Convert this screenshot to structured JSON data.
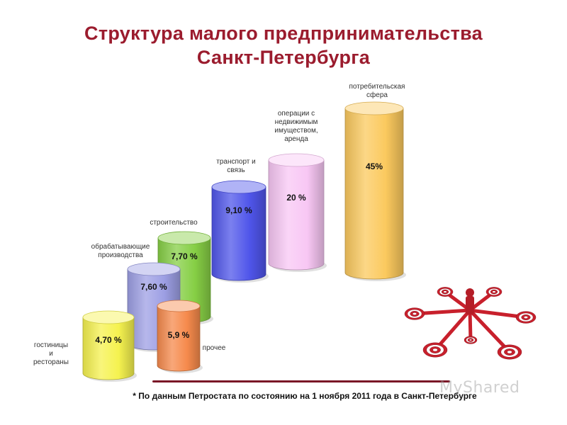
{
  "title": {
    "line1": "Структура малого предпринимательства",
    "line2": "Санкт-Петербурга"
  },
  "footnote": "* По данным Петростата по состоянию на 1 ноября 2011 года в Санкт-Петербурге",
  "watermark": "MyShared",
  "chart_data": {
    "type": "bar",
    "categories": [
      "гостиницы и рестораны",
      "обрабатывающие производства",
      "строительство",
      "транспорт и связь",
      "операции с недвижимым имуществом, аренда",
      "потребительская сфера",
      "прочее"
    ],
    "values": [
      4.7,
      7.6,
      7.7,
      9.1,
      20,
      45,
      5.9
    ],
    "value_labels": [
      "4,70 %",
      "7,60 %",
      "7,70 %",
      "9,10 %",
      "20 %",
      "45%",
      "5,9 %"
    ],
    "label_lines": [
      [
        "гостиницы",
        "и",
        "рестораны"
      ],
      [
        "обрабатывающие",
        "производства"
      ],
      [
        "строительство"
      ],
      [
        "транспорт и",
        "связь"
      ],
      [
        "операции с",
        "недвижимым",
        "имуществом,",
        "аренда"
      ],
      [
        "потребительская",
        "сфера"
      ],
      [
        "прочее"
      ]
    ],
    "colors": [
      "#f5f24f",
      "#9d9fe4",
      "#86cf45",
      "#4f55ea",
      "#f8c7f4",
      "#fbc95e",
      "#f68a4c"
    ],
    "unit": "%"
  }
}
